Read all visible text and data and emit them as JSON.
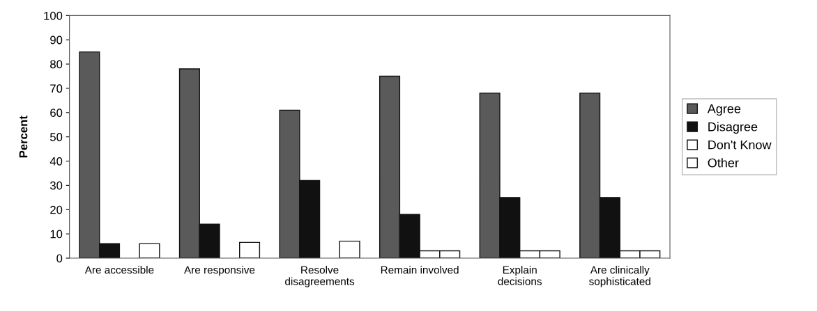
{
  "chart_data": {
    "type": "bar",
    "ylabel": "Percent",
    "categories": [
      "Are accessible",
      "Are responsive",
      "Resolve\ndisagreements",
      "Remain involved",
      "Explain\ndecisions",
      "Are clinically\nsophisticated"
    ],
    "series": [
      {
        "name": "Agree",
        "color": "#5a5a5a",
        "values": [
          85,
          78,
          61,
          75,
          68,
          68
        ]
      },
      {
        "name": "Disagree",
        "color": "#111111",
        "values": [
          6,
          14,
          32,
          18,
          25,
          25
        ]
      },
      {
        "name": "Don't Know",
        "color": "#ffffff",
        "values": [
          0,
          0,
          0,
          3,
          3,
          3
        ]
      },
      {
        "name": "Other",
        "color": "#ffffff",
        "values": [
          6,
          6.5,
          7,
          3,
          3,
          3
        ]
      }
    ],
    "ylim": [
      0,
      100
    ],
    "yticks": [
      0,
      10,
      20,
      30,
      40,
      50,
      60,
      70,
      80,
      90,
      100
    ],
    "grid": false,
    "legend": "right"
  }
}
